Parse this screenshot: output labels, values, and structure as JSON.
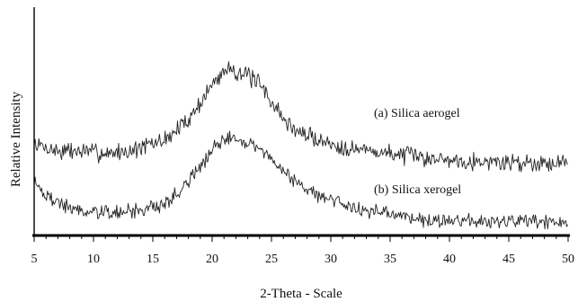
{
  "chart_data": {
    "type": "line",
    "title": "",
    "xlabel": "2-Theta - Scale",
    "ylabel": "Relative Intensity",
    "xlim": [
      5,
      50
    ],
    "ylim": [
      0,
      100
    ],
    "x_ticks": [
      "5",
      "10",
      "15",
      "20",
      "25",
      "30",
      "35",
      "40",
      "45",
      "50"
    ],
    "y_ticks": [],
    "grid": false,
    "legend": "none",
    "annotations": [
      {
        "id": "aerogel",
        "text": "(a) Silica aerogel"
      },
      {
        "id": "xerogel",
        "text": "(b) Silica xerogel"
      }
    ],
    "series": [
      {
        "id": "aerogel",
        "name": "(a) Silica aerogel",
        "color": "#222222",
        "x": [
          5,
          7,
          9,
          11,
          13,
          15,
          16,
          17,
          18,
          19,
          20,
          21,
          21.5,
          22,
          23,
          24,
          25,
          26,
          27,
          28,
          30,
          32,
          35,
          38,
          41,
          44,
          47,
          50
        ],
        "y": [
          40,
          37,
          37,
          36,
          37,
          40,
          42,
          46,
          51,
          58,
          66,
          72,
          74,
          72,
          70,
          66,
          59,
          51,
          46,
          44,
          40,
          38,
          36,
          34,
          33,
          32,
          32,
          32
        ]
      },
      {
        "id": "xerogel",
        "name": "(b) Silica xerogel",
        "color": "#222222",
        "x": [
          5,
          6,
          8,
          10,
          12,
          14,
          16,
          17,
          18,
          19,
          20,
          21,
          21.5,
          22,
          23,
          24,
          25,
          26,
          27,
          28,
          30,
          32,
          35,
          38,
          41,
          44,
          47,
          50
        ],
        "y": [
          25,
          17,
          12,
          10,
          10,
          11,
          14,
          18,
          24,
          30,
          37,
          42,
          44,
          43,
          41,
          38,
          34,
          28,
          24,
          20,
          16,
          12,
          9,
          7,
          6,
          6,
          6,
          5
        ]
      }
    ]
  }
}
